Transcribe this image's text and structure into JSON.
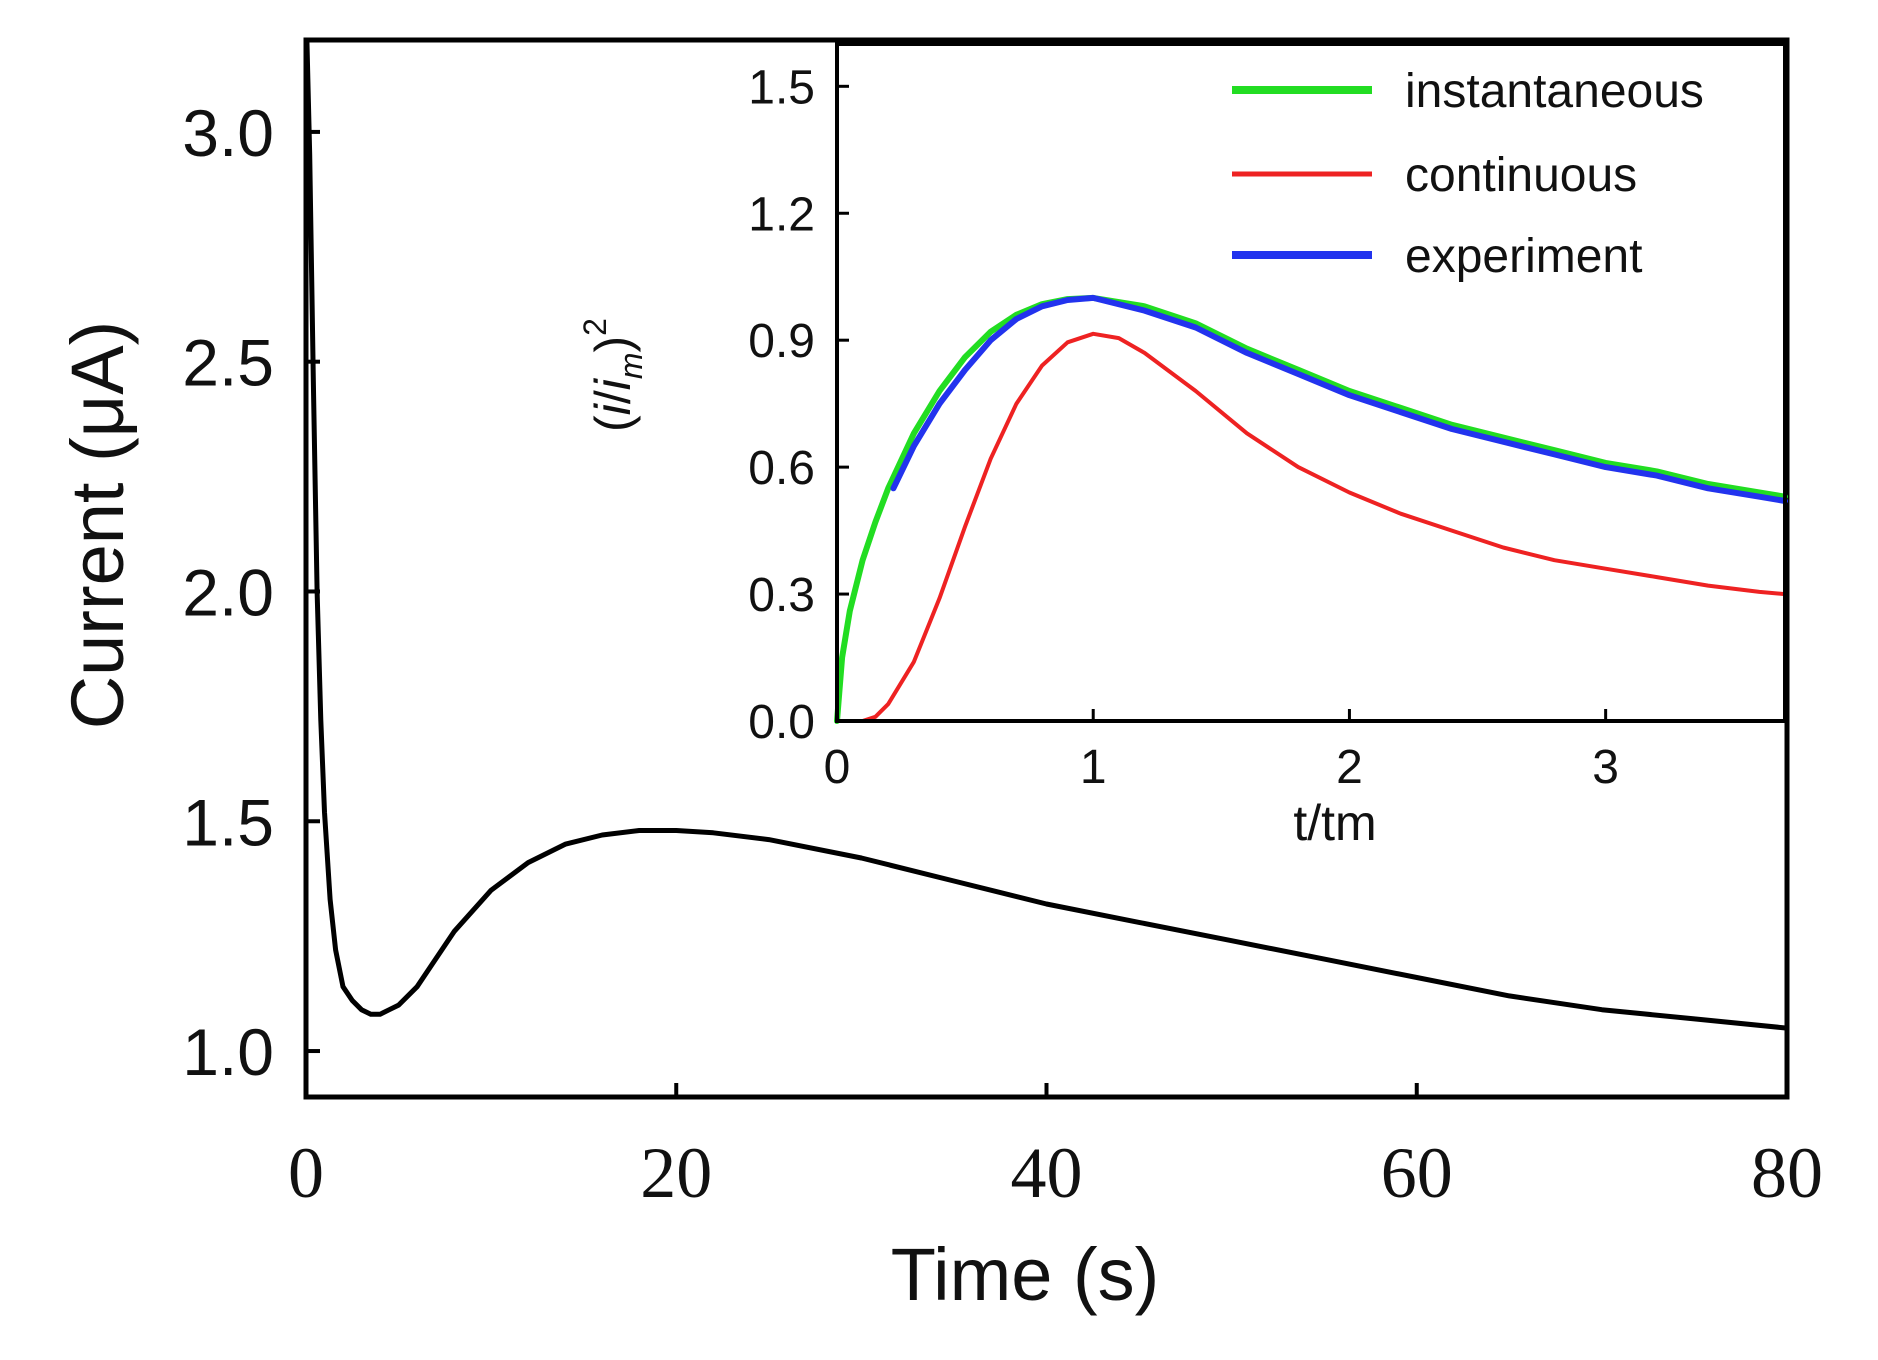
{
  "chart_data": [
    {
      "id": "main",
      "type": "line",
      "title": "",
      "xlabel": "Time (s)",
      "ylabel": "Current (μA)",
      "xlim": [
        0,
        80
      ],
      "ylim": [
        0.9,
        3.2
      ],
      "xticks": [
        0,
        20,
        40,
        60,
        80
      ],
      "xtick_labels": [
        "0",
        "20",
        "40",
        "60",
        "80"
      ],
      "yticks": [
        1.0,
        1.5,
        2.0,
        2.5,
        3.0
      ],
      "ytick_labels": [
        "1.0",
        "1.5",
        "2.0",
        "2.5",
        "3.0"
      ],
      "grid": false,
      "series": [
        {
          "name": "current",
          "color": "#000000",
          "x": [
            0.05,
            0.2,
            0.4,
            0.6,
            0.8,
            1.0,
            1.3,
            1.6,
            2.0,
            2.5,
            3.0,
            3.5,
            4.0,
            4.5,
            5.0,
            6.0,
            7.0,
            8.0,
            10.0,
            12.0,
            14.0,
            16.0,
            18.0,
            20.0,
            22.0,
            25.0,
            30.0,
            35.0,
            40.0,
            45.0,
            50.0,
            55.0,
            60.0,
            65.0,
            70.0,
            75.0,
            80.0
          ],
          "y": [
            3.2,
            2.95,
            2.45,
            2.0,
            1.72,
            1.52,
            1.33,
            1.22,
            1.14,
            1.11,
            1.09,
            1.08,
            1.08,
            1.09,
            1.1,
            1.14,
            1.2,
            1.26,
            1.35,
            1.41,
            1.45,
            1.47,
            1.48,
            1.48,
            1.475,
            1.46,
            1.42,
            1.37,
            1.32,
            1.28,
            1.24,
            1.2,
            1.16,
            1.12,
            1.09,
            1.07,
            1.05
          ]
        }
      ]
    },
    {
      "id": "inset",
      "type": "line",
      "title": "",
      "xlabel": "t/tm",
      "ylabel": "(i/i_m)^2",
      "ylabel_parts": {
        "open": "(",
        "i": "i",
        "slash": "/",
        "base": "i",
        "sub": "m",
        "close": ")",
        "sup": "2"
      },
      "xlim": [
        0,
        3.7
      ],
      "ylim": [
        0,
        1.6
      ],
      "xticks": [
        0,
        1,
        2,
        3
      ],
      "xtick_labels": [
        "0",
        "1",
        "2",
        "3"
      ],
      "yticks": [
        0.0,
        0.3,
        0.6,
        0.9,
        1.2,
        1.5
      ],
      "ytick_labels": [
        "0.0",
        "0.3",
        "0.6",
        "0.9",
        "1.2",
        "1.5"
      ],
      "grid": false,
      "legend_position": "top-right",
      "series": [
        {
          "name": "instantaneous",
          "color": "#22dd22",
          "x": [
            0.0,
            0.02,
            0.05,
            0.1,
            0.15,
            0.2,
            0.3,
            0.4,
            0.5,
            0.6,
            0.7,
            0.8,
            0.9,
            1.0,
            1.2,
            1.4,
            1.6,
            1.8,
            2.0,
            2.2,
            2.4,
            2.6,
            2.8,
            3.0,
            3.2,
            3.4,
            3.6,
            3.7
          ],
          "y": [
            0.0,
            0.15,
            0.26,
            0.38,
            0.47,
            0.55,
            0.68,
            0.78,
            0.86,
            0.92,
            0.96,
            0.985,
            0.997,
            1.0,
            0.98,
            0.94,
            0.88,
            0.83,
            0.78,
            0.74,
            0.7,
            0.67,
            0.64,
            0.61,
            0.59,
            0.56,
            0.54,
            0.53
          ]
        },
        {
          "name": "continuous",
          "color": "#ee2222",
          "x": [
            0.0,
            0.1,
            0.15,
            0.2,
            0.3,
            0.4,
            0.5,
            0.6,
            0.7,
            0.8,
            0.9,
            1.0,
            1.1,
            1.2,
            1.4,
            1.6,
            1.8,
            2.0,
            2.2,
            2.4,
            2.6,
            2.8,
            3.0,
            3.2,
            3.4,
            3.6,
            3.7
          ],
          "y": [
            0.0,
            0.0,
            0.01,
            0.04,
            0.14,
            0.29,
            0.46,
            0.62,
            0.75,
            0.84,
            0.895,
            0.915,
            0.905,
            0.87,
            0.78,
            0.68,
            0.6,
            0.54,
            0.49,
            0.45,
            0.41,
            0.38,
            0.36,
            0.34,
            0.32,
            0.305,
            0.3
          ]
        },
        {
          "name": "experiment",
          "color": "#2233ee",
          "x": [
            0.22,
            0.3,
            0.4,
            0.5,
            0.6,
            0.7,
            0.8,
            0.9,
            1.0,
            1.2,
            1.4,
            1.6,
            1.8,
            2.0,
            2.2,
            2.4,
            2.6,
            2.8,
            3.0,
            3.2,
            3.4,
            3.6,
            3.7
          ],
          "y": [
            0.55,
            0.65,
            0.75,
            0.83,
            0.9,
            0.95,
            0.98,
            0.995,
            1.0,
            0.97,
            0.93,
            0.87,
            0.82,
            0.77,
            0.73,
            0.69,
            0.66,
            0.63,
            0.6,
            0.58,
            0.55,
            0.53,
            0.52
          ]
        }
      ]
    }
  ]
}
